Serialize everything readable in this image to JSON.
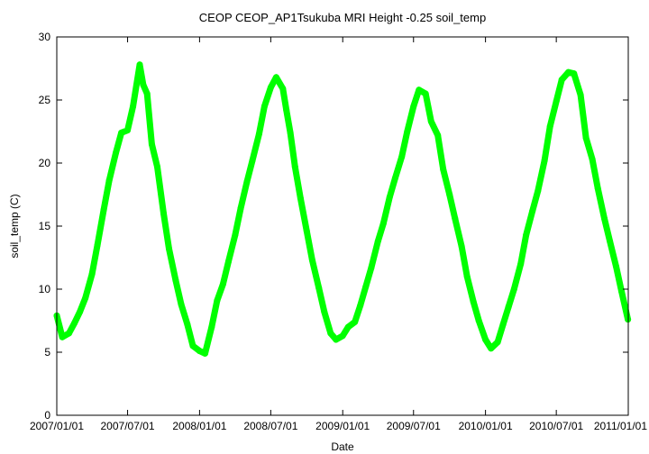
{
  "chart_data": {
    "type": "line",
    "title": "CEOP CEOP_AP1Tsukuba MRI Height -0.25 soil_temp",
    "xlabel": "Date",
    "ylabel": "soil_temp (C)",
    "xlim": [
      "2007/01/01",
      "2011/01/01"
    ],
    "ylim": [
      0,
      30
    ],
    "x_ticks": [
      "2007/01/01",
      "2007/07/01",
      "2008/01/01",
      "2008/07/01",
      "2009/01/01",
      "2009/07/01",
      "2010/01/01",
      "2010/07/01",
      "2011/01/01"
    ],
    "y_ticks": [
      0,
      5,
      10,
      15,
      20,
      25,
      30
    ],
    "grid": false,
    "legend": "none",
    "series": [
      {
        "color": "#00ff00",
        "x": [
          "2007/01/01",
          "2007/01/15",
          "2007/02/01",
          "2007/02/15",
          "2007/03/01",
          "2007/03/15",
          "2007/04/01",
          "2007/04/15",
          "2007/05/01",
          "2007/05/15",
          "2007/06/01",
          "2007/06/15",
          "2007/07/01",
          "2007/07/15",
          "2007/08/01",
          "2007/08/10",
          "2007/08/20",
          "2007/09/01",
          "2007/09/15",
          "2007/10/01",
          "2007/10/15",
          "2007/11/01",
          "2007/11/15",
          "2007/12/01",
          "2007/12/15",
          "2008/01/01",
          "2008/01/15",
          "2008/02/01",
          "2008/02/15",
          "2008/03/01",
          "2008/03/15",
          "2008/04/01",
          "2008/04/15",
          "2008/05/01",
          "2008/05/15",
          "2008/06/01",
          "2008/06/15",
          "2008/07/01",
          "2008/07/15",
          "2008/08/01",
          "2008/08/10",
          "2008/08/20",
          "2008/09/01",
          "2008/09/15",
          "2008/10/01",
          "2008/10/15",
          "2008/11/01",
          "2008/11/15",
          "2008/12/01",
          "2008/12/15",
          "2009/01/01",
          "2009/01/15",
          "2009/02/01",
          "2009/02/15",
          "2009/03/01",
          "2009/03/15",
          "2009/04/01",
          "2009/04/15",
          "2009/05/01",
          "2009/05/15",
          "2009/06/01",
          "2009/06/15",
          "2009/07/01",
          "2009/07/15",
          "2009/08/01",
          "2009/08/15",
          "2009/09/01",
          "2009/09/15",
          "2009/10/01",
          "2009/10/15",
          "2009/11/01",
          "2009/11/15",
          "2009/12/01",
          "2009/12/15",
          "2010/01/01",
          "2010/01/15",
          "2010/02/01",
          "2010/02/15",
          "2010/03/01",
          "2010/03/15",
          "2010/04/01",
          "2010/04/15",
          "2010/05/01",
          "2010/05/15",
          "2010/06/01",
          "2010/06/15",
          "2010/07/01",
          "2010/07/15",
          "2010/08/01",
          "2010/08/15",
          "2010/09/01",
          "2010/09/15",
          "2010/10/01",
          "2010/10/15",
          "2010/11/01",
          "2010/11/15",
          "2010/12/01",
          "2010/12/15",
          "2010/12/31"
        ],
        "y": [
          7.9,
          6.2,
          6.5,
          7.3,
          8.2,
          9.3,
          11.2,
          13.5,
          16.3,
          18.6,
          20.8,
          22.4,
          22.6,
          24.5,
          27.8,
          26.2,
          25.5,
          21.5,
          19.7,
          16.0,
          13.2,
          10.7,
          8.8,
          7.2,
          5.5,
          5.1,
          4.9,
          7.0,
          9.1,
          10.4,
          12.2,
          14.3,
          16.4,
          18.5,
          20.2,
          22.3,
          24.5,
          26.0,
          26.8,
          25.9,
          24.2,
          22.4,
          19.7,
          17.2,
          14.6,
          12.3,
          10.1,
          8.2,
          6.5,
          6.0,
          6.3,
          7.0,
          7.4,
          8.7,
          10.2,
          11.7,
          13.8,
          15.2,
          17.3,
          18.8,
          20.5,
          22.5,
          24.5,
          25.8,
          25.5,
          23.3,
          22.2,
          19.5,
          17.5,
          15.6,
          13.4,
          11.0,
          9.0,
          7.5,
          6.0,
          5.3,
          5.8,
          7.2,
          8.6,
          10.0,
          12.0,
          14.3,
          16.2,
          17.8,
          20.2,
          22.9,
          24.9,
          26.6,
          27.2,
          27.1,
          25.4,
          22.0,
          20.3,
          18.0,
          15.6,
          13.8,
          11.8,
          9.8,
          7.6
        ]
      }
    ]
  }
}
